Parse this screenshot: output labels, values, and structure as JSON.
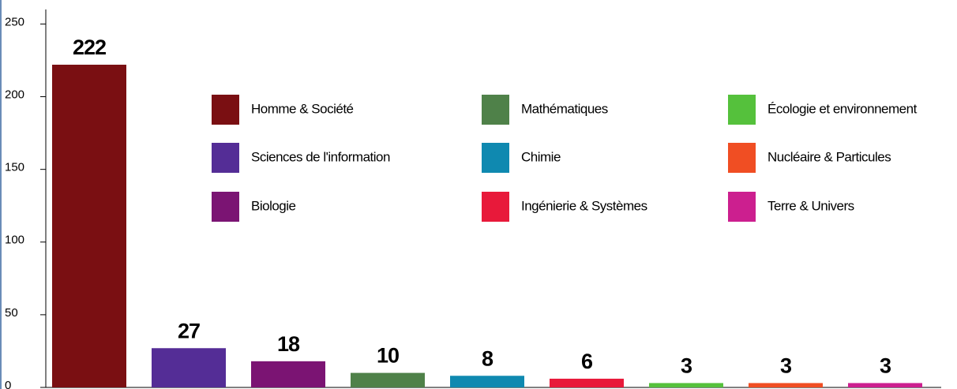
{
  "chart_data": {
    "type": "bar",
    "categories": [
      "Homme & Société",
      "Sciences de l'information",
      "Biologie",
      "Mathématiques",
      "Chimie",
      "Ingénierie & Systèmes",
      "Écologie et environnement",
      "Nucléaire & Particules",
      "Terre & Univers"
    ],
    "values": [
      222,
      27,
      18,
      10,
      8,
      6,
      3,
      3,
      3
    ],
    "colors": [
      "#7a0f12",
      "#542d96",
      "#7b1473",
      "#4f8149",
      "#0f89b0",
      "#e8193a",
      "#55c13c",
      "#f04e23",
      "#cc1f8f"
    ],
    "ylim": [
      0,
      260
    ],
    "yticks": [
      0,
      50,
      100,
      150,
      200,
      250
    ]
  }
}
